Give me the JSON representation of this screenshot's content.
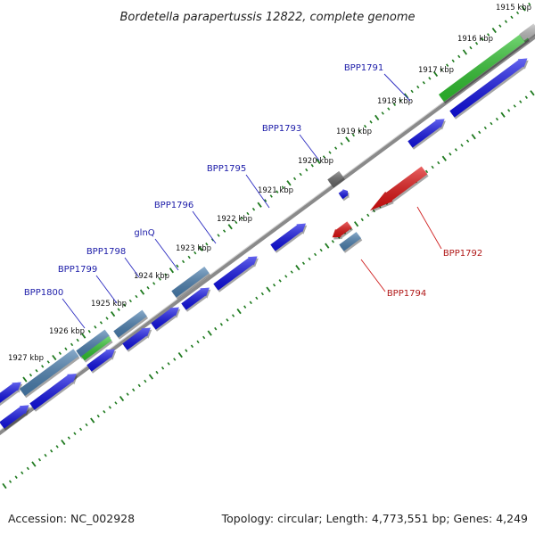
{
  "title": "Bordetella parapertussis 12822, complete genome",
  "accession": "Accession: NC_002928",
  "summary": "Topology: circular; Length: 4,773,551 bp; Genes: 4,249",
  "colors": {
    "cds": "#1010e6",
    "gene": "#4a7fb0",
    "rna": "#2fc42f",
    "reverse_feature": "#e01010",
    "pseudo": "#6a6a6a",
    "backbone": "#8a8a8a",
    "tick": "#1f7a1f",
    "forward_label": "#1b1ba8",
    "reverse_label": "#b01818"
  },
  "kbp_labels": [
    "1915 kbp",
    "1916 kbp",
    "1917 kbp",
    "1918 kbp",
    "1919 kbp",
    "1920 kbp",
    "1921 kbp",
    "1922 kbp",
    "1923 kbp",
    "1924 kbp",
    "1925 kbp",
    "1926 kbp",
    "1927 kbp"
  ],
  "forward_genes": [
    "BPP1791",
    "BPP1793",
    "BPP1795",
    "BPP1796",
    "glnQ",
    "BPP1798",
    "BPP1799",
    "BPP1800"
  ],
  "reverse_genes": [
    "BPP1792",
    "BPP1794"
  ]
}
